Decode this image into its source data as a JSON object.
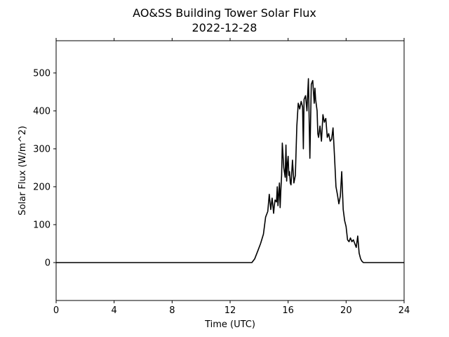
{
  "chart_data": {
    "type": "line",
    "title": "AO&SS Building Tower Solar Flux",
    "subtitle": "2022-12-28",
    "xlabel": "Time (UTC)",
    "ylabel": "Solar Flux (W/m^2)",
    "xlim": [
      0,
      24
    ],
    "ylim": [
      -100,
      585
    ],
    "xticks": [
      0,
      4,
      8,
      12,
      16,
      20,
      24
    ],
    "yticks": [
      0,
      100,
      200,
      300,
      400,
      500
    ],
    "grid": false,
    "line_color": "#000000",
    "series": [
      {
        "x": [
          0,
          13.5,
          13.7,
          13.9,
          14.1,
          14.3,
          14.45,
          14.6,
          14.7,
          14.8,
          14.9,
          15.0,
          15.05,
          15.1,
          15.2,
          15.25,
          15.3,
          15.4,
          15.45,
          15.5,
          15.55,
          15.6,
          15.7,
          15.8,
          15.85,
          15.9,
          15.95,
          16.0,
          16.05,
          16.1,
          16.15,
          16.2,
          16.3,
          16.4,
          16.5,
          16.6,
          16.7,
          16.8,
          16.9,
          17.0,
          17.05,
          17.1,
          17.2,
          17.3,
          17.4,
          17.5,
          17.6,
          17.7,
          17.75,
          17.8,
          17.85,
          17.9,
          18.0,
          18.05,
          18.1,
          18.2,
          18.3,
          18.4,
          18.5,
          18.6,
          18.7,
          18.8,
          18.9,
          19.0,
          19.1,
          19.2,
          19.3,
          19.4,
          19.5,
          19.6,
          19.7,
          19.8,
          19.9,
          20.0,
          20.1,
          20.2,
          20.3,
          20.4,
          20.5,
          20.6,
          20.7,
          20.8,
          20.9,
          21.0,
          21.1,
          21.2,
          21.3,
          21.4,
          21.5,
          21.6,
          21.7,
          21.8,
          21.9,
          22.0,
          22.1,
          22.2,
          22.3,
          22.5,
          24.0
        ],
        "y": [
          0,
          0,
          10,
          30,
          50,
          75,
          120,
          135,
          180,
          140,
          170,
          130,
          150,
          165,
          160,
          200,
          150,
          210,
          145,
          190,
          230,
          315,
          250,
          225,
          310,
          215,
          260,
          280,
          230,
          240,
          210,
          205,
          270,
          210,
          230,
          360,
          420,
          405,
          425,
          410,
          300,
          430,
          440,
          400,
          485,
          275,
          470,
          480,
          450,
          420,
          460,
          430,
          400,
          340,
          330,
          360,
          320,
          390,
          370,
          380,
          330,
          340,
          320,
          325,
          355,
          280,
          200,
          180,
          155,
          175,
          240,
          140,
          110,
          95,
          60,
          55,
          65,
          55,
          60,
          50,
          40,
          70,
          25,
          10,
          3,
          0,
          0,
          0,
          0,
          0,
          0,
          0,
          0,
          0,
          0,
          0,
          0,
          0,
          0
        ]
      }
    ]
  }
}
